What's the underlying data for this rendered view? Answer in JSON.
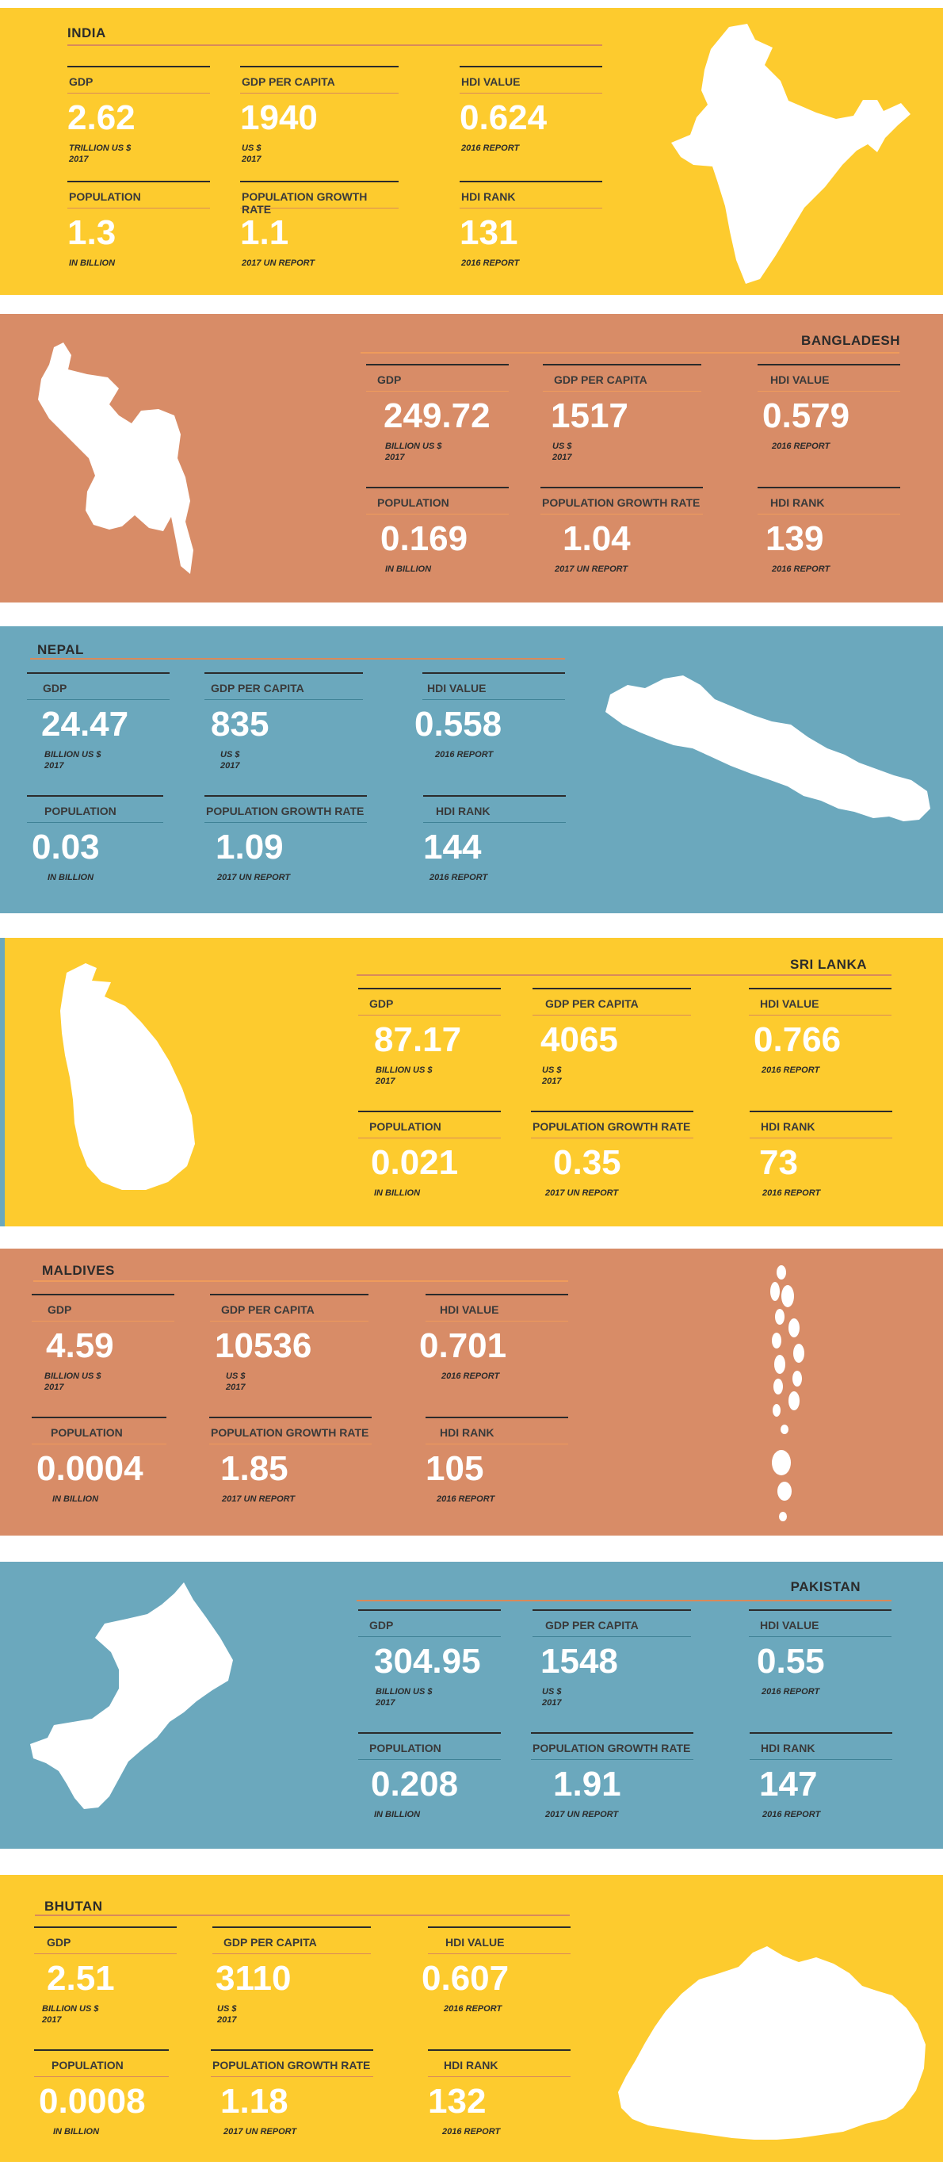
{
  "colors": {
    "yellow": "#fdcb2e",
    "terracotta": "#d88c67",
    "steel_blue": "#6ba8bd",
    "orange_line": "#d98a5a",
    "dark": "#2b2b2b",
    "white": "#ffffff"
  },
  "labels": {
    "gdp": "GDP",
    "gdp_per_capita": "GDP PER CAPITA",
    "hdi_value": "HDI VALUE",
    "population": "POPULATION",
    "population_growth_rate": "POPULATION GROWTH RATE",
    "hdi_rank": "HDI RANK"
  },
  "notes": {
    "population": "IN BILLION",
    "growth": "2017 UN REPORT",
    "hdi": "2016 REPORT",
    "per_capita": "US $\n2017"
  },
  "countries": [
    {
      "name": "INDIA",
      "icon": "india-map-icon",
      "gdp": "2.62",
      "gdp_note": "TRILLION US $\n2017",
      "gdp_per_capita": "1940",
      "hdi_value": "0.624",
      "population": "1.3",
      "population_growth_rate": "1.1",
      "hdi_rank": "131"
    },
    {
      "name": "BANGLADESH",
      "icon": "bangladesh-map-icon",
      "gdp": "249.72",
      "gdp_note": "BILLION US $\n2017",
      "gdp_per_capita": "1517",
      "hdi_value": "0.579",
      "population": "0.169",
      "population_growth_rate": "1.04",
      "hdi_rank": "139"
    },
    {
      "name": "NEPAL",
      "icon": "nepal-map-icon",
      "gdp": "24.47",
      "gdp_note": "BILLION US $\n2017",
      "gdp_per_capita": "835",
      "hdi_value": "0.558",
      "population": "0.03",
      "population_growth_rate": "1.09",
      "hdi_rank": "144"
    },
    {
      "name": "SRI LANKA",
      "icon": "sri-lanka-map-icon",
      "gdp": "87.17",
      "gdp_note": "BILLION US $\n2017",
      "gdp_per_capita": "4065",
      "hdi_value": "0.766",
      "population": "0.021",
      "population_growth_rate": "0.35",
      "hdi_rank": "73"
    },
    {
      "name": "MALDIVES",
      "icon": "maldives-map-icon",
      "gdp": "4.59",
      "gdp_note": "BILLION US $\n2017",
      "gdp_per_capita": "10536",
      "hdi_value": "0.701",
      "population": "0.0004",
      "population_growth_rate": "1.85",
      "hdi_rank": "105"
    },
    {
      "name": "PAKISTAN",
      "icon": "pakistan-map-icon",
      "gdp": "304.95",
      "gdp_note": "BILLION US $\n2017",
      "gdp_per_capita": "1548",
      "hdi_value": "0.55",
      "population": "0.208",
      "population_growth_rate": "1.91",
      "hdi_rank": "147"
    },
    {
      "name": "BHUTAN",
      "icon": "bhutan-map-icon",
      "gdp": "2.51",
      "gdp_note": "BILLION US $\n2017",
      "gdp_per_capita": "3110",
      "hdi_value": "0.607",
      "population": "0.0008",
      "population_growth_rate": "1.18",
      "hdi_rank": "132"
    }
  ]
}
